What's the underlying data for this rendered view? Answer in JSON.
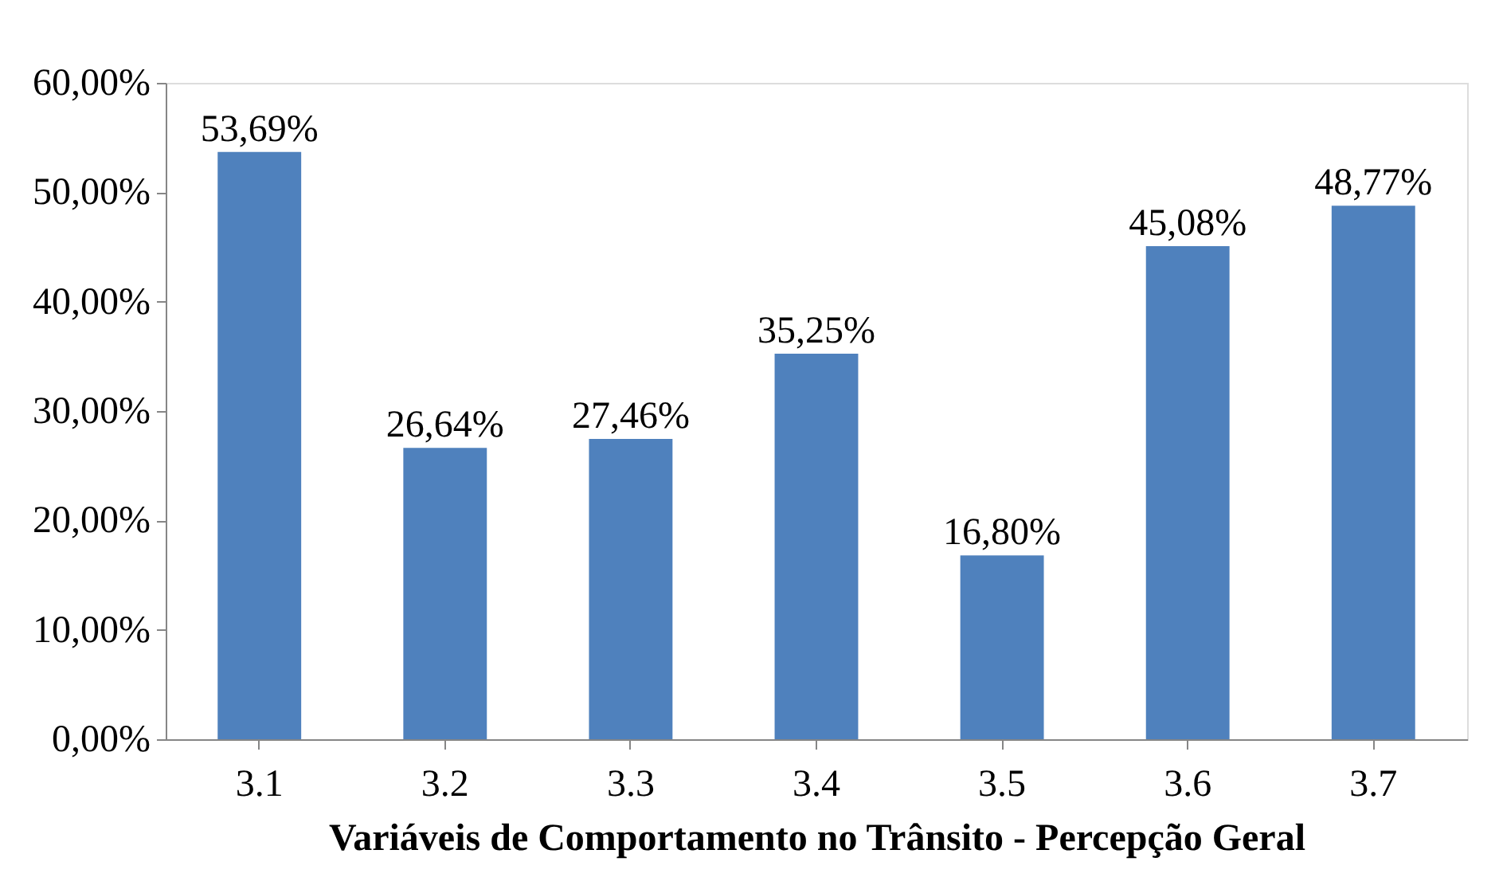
{
  "chart_data": {
    "type": "bar",
    "xlabel": "Variáveis de Comportamento  no Trânsito - Percepção Geral",
    "categories": [
      "3.1",
      "3.2",
      "3.3",
      "3.4",
      "3.5",
      "3.6",
      "3.7"
    ],
    "values": [
      53.69,
      26.64,
      27.46,
      35.25,
      16.8,
      45.08,
      48.77
    ],
    "color": "#4f81bd",
    "value_labels": [
      "53,69%",
      "26,64%",
      "27,46%",
      "35,25%",
      "16,80%",
      "45,08%",
      "48,77%"
    ],
    "ylim": [
      0,
      60
    ],
    "yticks": [
      {
        "value": 0,
        "label": "0,00%"
      },
      {
        "value": 10,
        "label": "10,00%"
      },
      {
        "value": 20,
        "label": "20,00%"
      },
      {
        "value": 30,
        "label": "30,00%"
      },
      {
        "value": 40,
        "label": "40,00%"
      },
      {
        "value": 50,
        "label": "50,00%"
      },
      {
        "value": 60,
        "label": "60,00%"
      }
    ],
    "grid": false
  }
}
